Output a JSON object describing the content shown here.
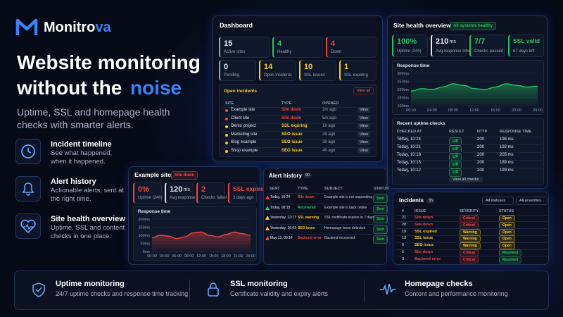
{
  "brand": {
    "name": "Monitro",
    "accent": "va"
  },
  "hero": {
    "line1": "Website monitoring",
    "line2": "without the",
    "highlight": "noise",
    "subtitle": "Uptime, SSL and homepage health checks with smarter alerts."
  },
  "features": [
    {
      "title": "Incident timeline",
      "text": "See what happened, when it happened."
    },
    {
      "title": "Alert history",
      "text": "Actionable alerts, sent at the right time."
    },
    {
      "title": "Site health overview",
      "text": "Uptime, SSL and content checks in one place."
    }
  ],
  "benefits": [
    {
      "title": "Uptime monitoring",
      "text": "24/7 uptime checks and response time tracking"
    },
    {
      "title": "SSL monitoring",
      "text": "Certificate validity and expiry alerts"
    },
    {
      "title": "Homepage checks",
      "text": "Content and performance monitoring"
    }
  ],
  "dashboard": {
    "title": "Dashboard",
    "stats": [
      {
        "value": "15",
        "label": "Active sites",
        "color": "#94a3b8"
      },
      {
        "value": "4",
        "label": "Healthy",
        "color": "#22c55e"
      },
      {
        "value": "4",
        "label": "Down",
        "color": "#ef4444"
      },
      {
        "value": "0",
        "label": "Pending",
        "color": "#94a3b8"
      },
      {
        "value": "14",
        "label": "Open incidents",
        "color": "#facc15"
      },
      {
        "value": "10",
        "label": "SSL issues",
        "color": "#facc15"
      },
      {
        "value": "1",
        "label": "SSL expiring",
        "color": "#facc15"
      }
    ],
    "open_incidents": {
      "title": "Open incidents",
      "action": "View all",
      "columns": [
        "SITE",
        "TYPE",
        "OPENED"
      ],
      "rows": [
        {
          "site": "Example site",
          "type": "Site down",
          "opened": "2m ago",
          "action": "View",
          "color": "#ef4444"
        },
        {
          "site": "Client site",
          "type": "Site down",
          "opened": "5m ago",
          "action": "View",
          "color": "#ef4444"
        },
        {
          "site": "Demo project",
          "type": "SSL expiring",
          "opened": "1h ago",
          "action": "View",
          "color": "#facc15"
        },
        {
          "site": "Marketing site",
          "type": "SEO issue",
          "opened": "2h ago",
          "action": "View",
          "color": "#facc15"
        },
        {
          "site": "Blog example",
          "type": "SEO issue",
          "opened": "3h ago",
          "action": "View",
          "color": "#facc15"
        },
        {
          "site": "Shop example",
          "type": "SEO issue",
          "opened": "4h ago",
          "action": "View",
          "color": "#facc15"
        }
      ]
    }
  },
  "site_health": {
    "title": "Site health overview",
    "badge": "All systems healthy",
    "stats": [
      {
        "value": "100%",
        "label": "Uptime (24h)",
        "color": "#22c55e"
      },
      {
        "value": "210",
        "unit": "ms",
        "label": "Avg response time",
        "color": "#e2e8f0"
      },
      {
        "value": "7/7",
        "label": "Checks passed",
        "color": "#22c55e"
      },
      {
        "value": "SSL valid",
        "label": "67 days left",
        "color": "#22c55e"
      }
    ],
    "chart": {
      "title": "Response time",
      "color": "#22c55e",
      "xlim": [
        0,
        24
      ],
      "ylim": [
        100,
        300
      ],
      "yticks": [
        {
          "value": 300,
          "label": "300ms"
        },
        {
          "value": 250,
          "label": "250ms"
        },
        {
          "value": 200,
          "label": "200ms"
        },
        {
          "value": 150,
          "label": "150ms"
        },
        {
          "value": 100,
          "label": "100ms"
        }
      ],
      "xticks": [
        {
          "value": 0,
          "label": "00:00"
        },
        {
          "value": 4,
          "label": "04:00"
        },
        {
          "value": 8,
          "label": "08:00"
        },
        {
          "value": 12,
          "label": "12:00"
        },
        {
          "value": 16,
          "label": "16:00"
        },
        {
          "value": 20,
          "label": "20:00"
        },
        {
          "value": 24,
          "label": "24:00"
        }
      ],
      "x": [
        0,
        2,
        4,
        6,
        8,
        10,
        12,
        14,
        16,
        18,
        20,
        22,
        24
      ],
      "values": [
        190,
        205,
        200,
        215,
        235,
        225,
        205,
        200,
        215,
        235,
        225,
        215,
        220
      ]
    },
    "checks": {
      "title": "Recent uptime checks",
      "columns": [
        "CHECKED AT",
        "RESULT",
        "HTTP",
        "RESPONSE TIME"
      ],
      "rows": [
        {
          "checked_at": "Today, 10:24",
          "result": "UP",
          "http": "200",
          "response_time": "198 ms"
        },
        {
          "checked_at": "Today, 10:21",
          "result": "UP",
          "http": "200",
          "response_time": "192 ms"
        },
        {
          "checked_at": "Today, 10:18",
          "result": "UP",
          "http": "200",
          "response_time": "205 ms"
        },
        {
          "checked_at": "Today, 10:15",
          "result": "UP",
          "http": "200",
          "response_time": "189 ms"
        },
        {
          "checked_at": "Today, 10:12",
          "result": "UP",
          "http": "200",
          "response_time": "199 ms"
        }
      ],
      "action": "View all checks"
    }
  },
  "example_site": {
    "title": "Example site",
    "badge": "Site down",
    "stats": [
      {
        "value": "0%",
        "label": "Uptime (24h)",
        "color": "#ef4444"
      },
      {
        "value": "120",
        "unit": "ms",
        "label": "Avg response time",
        "color": "#e2e8f0"
      },
      {
        "value": "2",
        "label": "Checks failed",
        "color": "#ef4444"
      },
      {
        "value": "SSL expired",
        "label": "3 days ago",
        "color": "#ef4444"
      }
    ],
    "chart": {
      "title": "Response time",
      "color": "#ef4444",
      "xlim": [
        0,
        24
      ],
      "ylim": [
        0,
        200
      ],
      "yticks": [
        {
          "value": 200,
          "label": "200ms"
        },
        {
          "value": 150,
          "label": "150ms"
        },
        {
          "value": 100,
          "label": "100ms"
        },
        {
          "value": 50,
          "label": "50ms"
        },
        {
          "value": 0,
          "label": "0ms"
        }
      ],
      "xticks": [
        {
          "value": 0,
          "label": "00:00"
        },
        {
          "value": 3,
          "label": "03:00"
        },
        {
          "value": 6,
          "label": "06:00"
        },
        {
          "value": 9,
          "label": "09:00"
        },
        {
          "value": 12,
          "label": "12:00"
        },
        {
          "value": 15,
          "label": "15:00"
        },
        {
          "value": 18,
          "label": "18:00"
        },
        {
          "value": 21,
          "label": "21:00"
        },
        {
          "value": 24,
          "label": "24:00"
        }
      ],
      "x": [
        0,
        2,
        4,
        6,
        8,
        10,
        12,
        14,
        16,
        18,
        20,
        22,
        24
      ],
      "values": [
        85,
        100,
        95,
        80,
        90,
        115,
        120,
        100,
        90,
        105,
        120,
        110,
        100
      ]
    }
  },
  "alert_history": {
    "title": "Alert history",
    "count": "90",
    "columns": [
      "SENT",
      "TYPE",
      "SUBJECT",
      "STATUS"
    ],
    "rows": [
      {
        "sent": "Today, 10:24",
        "type": "Site down",
        "subject": "Example site is not responding",
        "status": "Sent",
        "color": "#ef4444"
      },
      {
        "sent": "Today, 08:15",
        "type": "Recovered",
        "subject": "Example site is back online",
        "status": "Sent",
        "color": "#22c55e"
      },
      {
        "sent": "Yesterday, 22:17",
        "type": "SSL warning",
        "subject": "SSL certificate expires in 7 days",
        "status": "Sent",
        "color": "#facc15"
      },
      {
        "sent": "Yesterday, 16:03",
        "type": "SEO issue",
        "subject": "Homepage issue detected",
        "status": "Sent",
        "color": "#facc15"
      },
      {
        "sent": "May 12, 09:14",
        "type": "Backend error",
        "subject": "Backend recovered",
        "status": "Sent",
        "color": "#ef4444"
      }
    ]
  },
  "incidents": {
    "title": "Incidents",
    "count": "35",
    "filters": [
      "All statuses",
      "All severities"
    ],
    "columns": [
      "#",
      "ISSUE",
      "SEVERITY",
      "STATUS"
    ],
    "rows": [
      {
        "id": "21",
        "issue": "Site down",
        "severity": "Critical",
        "status": "Open",
        "color": "#ef4444",
        "status_color": "#facc15"
      },
      {
        "id": "20",
        "issue": "Site down",
        "severity": "Critical",
        "status": "Open",
        "color": "#ef4444",
        "status_color": "#facc15"
      },
      {
        "id": "19",
        "issue": "SSL expired",
        "severity": "Warning",
        "status": "Open",
        "color": "#facc15",
        "status_color": "#facc15"
      },
      {
        "id": "13",
        "issue": "SSL issue",
        "severity": "Warning",
        "status": "Open",
        "color": "#facc15",
        "status_color": "#facc15"
      },
      {
        "id": "9",
        "issue": "SEO issue",
        "severity": "Warning",
        "status": "Open",
        "color": "#facc15",
        "status_color": "#facc15"
      },
      {
        "id": "6",
        "issue": "Site down",
        "severity": "Critical",
        "status": "Resolved",
        "color": "#ef4444",
        "status_color": "#22c55e"
      },
      {
        "id": "3",
        "issue": "Backend error",
        "severity": "Critical",
        "status": "Resolved",
        "color": "#ef4444",
        "status_color": "#22c55e"
      }
    ]
  }
}
